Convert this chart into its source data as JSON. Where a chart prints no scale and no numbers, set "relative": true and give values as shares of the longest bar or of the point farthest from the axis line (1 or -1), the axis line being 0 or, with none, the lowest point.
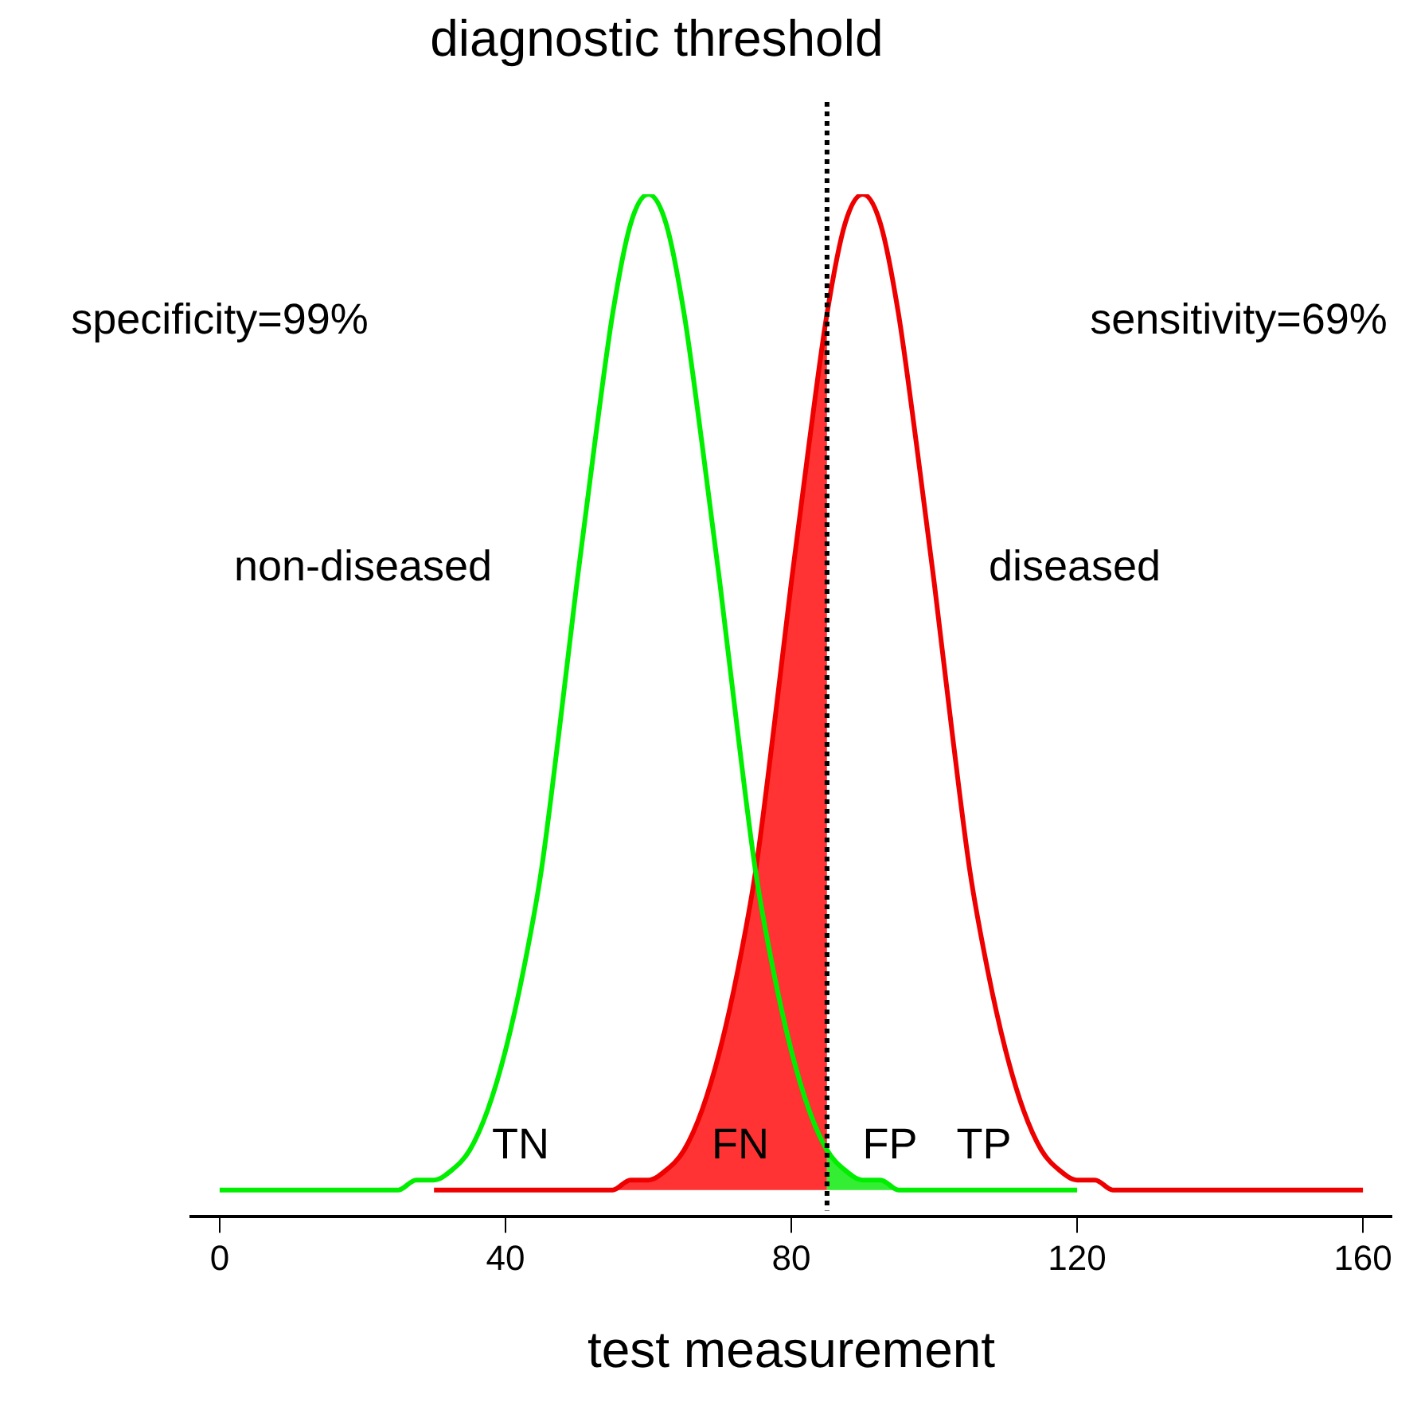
{
  "chart_data": {
    "type": "line",
    "relative": true,
    "xlabel": "test measurement",
    "xlim": [
      -4,
      164
    ],
    "xticks": [
      0,
      40,
      80,
      120,
      160
    ],
    "grid": false,
    "legend": false,
    "marker": "none",
    "line_style": "solid",
    "series": [
      {
        "name": "non-diseased",
        "color": "#00ee00",
        "x": [
          0,
          5,
          10,
          15,
          20,
          22.5,
          25,
          27.5,
          30,
          32.5,
          35,
          37.5,
          40,
          42.5,
          45,
          47.5,
          50,
          52.5,
          55,
          57.5,
          60,
          62.5,
          65,
          67.5,
          70,
          72.5,
          75,
          77.5,
          80,
          82.5,
          85,
          87.5,
          90,
          92.5,
          95,
          97.5,
          100,
          105,
          110,
          115,
          120
        ],
        "values": [
          0,
          0,
          0,
          0,
          0,
          0,
          0,
          0.01,
          0.01,
          0.02,
          0.04,
          0.08,
          0.14,
          0.22,
          0.32,
          0.46,
          0.61,
          0.75,
          0.88,
          0.97,
          1,
          0.97,
          0.88,
          0.75,
          0.61,
          0.46,
          0.32,
          0.22,
          0.14,
          0.08,
          0.04,
          0.02,
          0.01,
          0.01,
          0,
          0,
          0,
          0,
          0,
          0,
          0
        ]
      },
      {
        "name": "diseased",
        "color": "#ee0000",
        "x": [
          30,
          35,
          40,
          45,
          50,
          55,
          57.5,
          60,
          62.5,
          65,
          67.5,
          70,
          72.5,
          75,
          77.5,
          80,
          82.5,
          85,
          87.5,
          90,
          92.5,
          95,
          97.5,
          100,
          102.5,
          105,
          107.5,
          110,
          112.5,
          115,
          117.5,
          120,
          122.5,
          125,
          130,
          135,
          140,
          145,
          150,
          155,
          160
        ],
        "values": [
          0,
          0,
          0,
          0,
          0,
          0,
          0.01,
          0.01,
          0.02,
          0.04,
          0.08,
          0.14,
          0.22,
          0.32,
          0.46,
          0.61,
          0.75,
          0.88,
          0.97,
          1,
          0.97,
          0.88,
          0.75,
          0.61,
          0.46,
          0.32,
          0.22,
          0.14,
          0.08,
          0.04,
          0.02,
          0.01,
          0.01,
          0,
          0,
          0,
          0,
          0,
          0,
          0,
          0
        ]
      },
      {
        "type": "area",
        "color": "#ff3333",
        "x": [
          55,
          57.5,
          60,
          62.5,
          65,
          67.5,
          70,
          72.5,
          75,
          77.5,
          80,
          82.5,
          85
        ],
        "values": [
          0,
          0.01,
          0.01,
          0.02,
          0.04,
          0.08,
          0.14,
          0.22,
          0.32,
          0.46,
          0.61,
          0.75,
          0.88
        ]
      },
      {
        "type": "area",
        "color": "#33ee33",
        "x": [
          85,
          87.5,
          90,
          92.5,
          95,
          97.5,
          100
        ],
        "values": [
          0.04,
          0.02,
          0.01,
          0.01,
          0,
          0,
          0
        ]
      }
    ],
    "ref_lines": [
      {
        "axis": "x",
        "value": 85,
        "label": "diagnostic threshold",
        "color": "#000000",
        "line_style": "dotted"
      }
    ],
    "annotations": [
      "specificity=99%",
      "sensitivity=69%",
      "TN",
      "FN",
      "FP",
      "TP"
    ]
  }
}
